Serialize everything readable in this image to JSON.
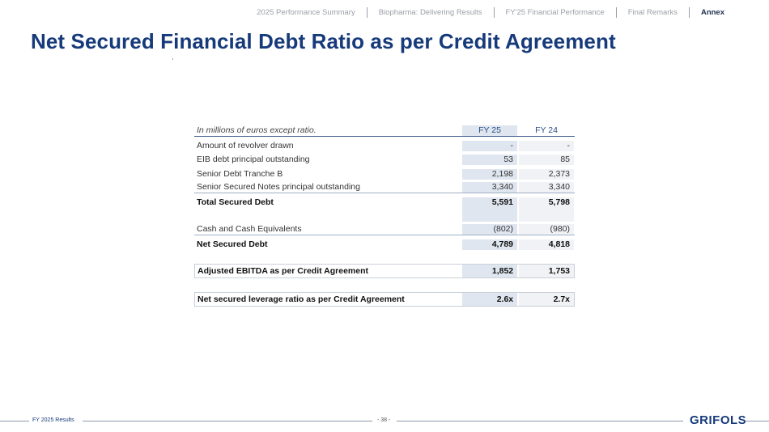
{
  "nav": {
    "items": [
      "2025 Performance Summary",
      "Biopharma: Delivering Results",
      "FY'25 Financial Performance",
      "Final Remarks",
      "Annex"
    ]
  },
  "title": "Net Secured Financial Debt Ratio as per Credit Agreement",
  "table": {
    "unit_note": "In millions of euros except ratio.",
    "col_fy25": "FY 25",
    "col_fy24": "FY 24",
    "rows": [
      {
        "label": "Amount of revolver drawn",
        "fy25": "-",
        "fy24": "-"
      },
      {
        "label": "EIB debt principal outstanding",
        "fy25": "53",
        "fy24": "85"
      },
      {
        "label": "Senior Debt Tranche B",
        "fy25": "2,198",
        "fy24": "2,373"
      },
      {
        "label": "Senior Secured Notes principal outstanding",
        "fy25": "3,340",
        "fy24": "3,340"
      },
      {
        "label": "Total Secured Debt",
        "fy25": "5,591",
        "fy24": "5,798"
      },
      {
        "label": "Cash and Cash Equivalents",
        "fy25": "(802)",
        "fy24": "(980)"
      },
      {
        "label": "Net Secured Debt",
        "fy25": "4,789",
        "fy24": "4,818"
      },
      {
        "label": "Adjusted EBITDA  as per Credit Agreement",
        "fy25": "1,852",
        "fy24": "1,753"
      },
      {
        "label": "Net secured leverage ratio as per Credit Agreement",
        "fy25": "2.6x",
        "fy24": "2.7x"
      }
    ]
  },
  "footer": {
    "left": "FY 2025 Results",
    "page": "- 38 -",
    "logo": "GRIFOLS"
  },
  "colors": {
    "title": "#163a7a",
    "nav_text": "#9aa0a8",
    "fy25_fill": "#dfe6ef",
    "fy24_fill": "#f0f2f5"
  }
}
